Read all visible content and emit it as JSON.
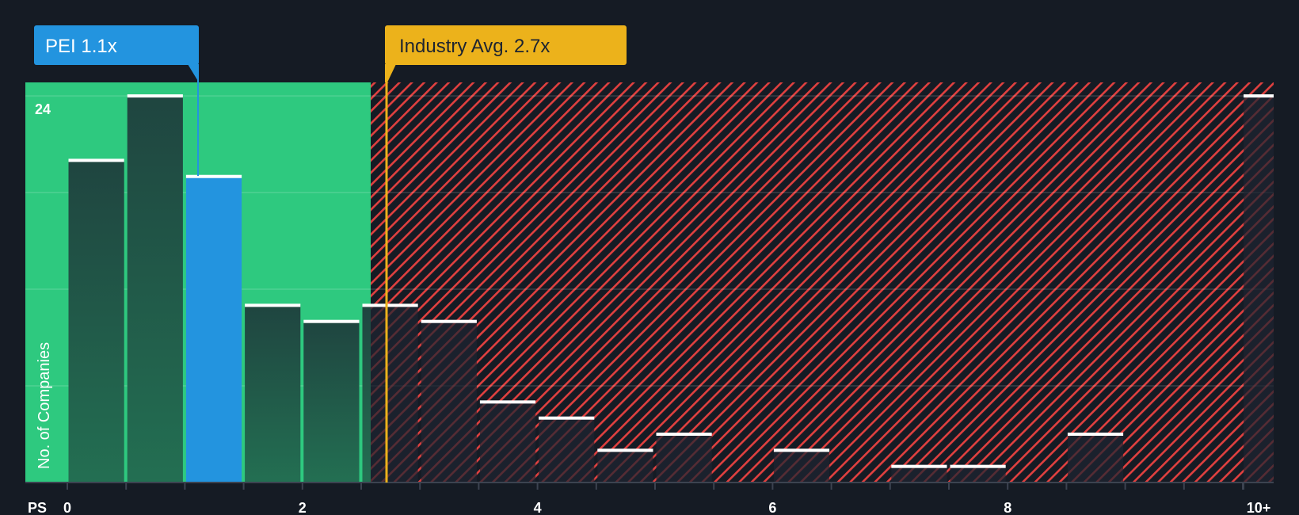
{
  "chart_data": {
    "type": "bar",
    "title": "",
    "xlabel": "PS",
    "ylabel": "No. of Companies",
    "x_tick_labels": [
      "0",
      "2",
      "4",
      "6",
      "8",
      "10+"
    ],
    "y_tick_labels": [
      "24"
    ],
    "ylim": [
      0,
      24
    ],
    "grid": true,
    "bin_width": 0.5,
    "bins": [
      {
        "range": "0-0.5",
        "value": 20
      },
      {
        "range": "0.5-1.0",
        "value": 24
      },
      {
        "range": "1.0-1.5",
        "value": 19,
        "highlight": true
      },
      {
        "range": "1.5-2.0",
        "value": 11
      },
      {
        "range": "2.0-2.5",
        "value": 10
      },
      {
        "range": "2.5-3.0",
        "value": 11
      },
      {
        "range": "3.0-3.5",
        "value": 10
      },
      {
        "range": "3.5-4.0",
        "value": 5
      },
      {
        "range": "4.0-4.5",
        "value": 4
      },
      {
        "range": "4.5-5.0",
        "value": 2
      },
      {
        "range": "5.0-5.5",
        "value": 3
      },
      {
        "range": "5.5-6.0",
        "value": 0
      },
      {
        "range": "6.0-6.5",
        "value": 2
      },
      {
        "range": "6.5-7.0",
        "value": 0
      },
      {
        "range": "7.0-7.5",
        "value": 1
      },
      {
        "range": "7.5-8.0",
        "value": 1
      },
      {
        "range": "8.0-8.5",
        "value": 0
      },
      {
        "range": "8.5-9.0",
        "value": 3
      },
      {
        "range": "9.0-9.5",
        "value": 0
      },
      {
        "range": "9.5-10.0",
        "value": 0
      },
      {
        "range": "10+",
        "value": 24
      }
    ],
    "annotations": [
      {
        "label": "PEI 1.1x",
        "x": 1.1,
        "color": "#2394df"
      },
      {
        "label": "Industry Avg. 2.7x",
        "x": 2.7,
        "color": "#ecb21b"
      }
    ],
    "regions": [
      {
        "name": "fair",
        "from": 0,
        "to": 2.58,
        "color": "#2ec97f"
      },
      {
        "name": "overvalued",
        "from": 2.58,
        "to": "10+",
        "color": "#e0403f",
        "pattern": "hatched"
      }
    ]
  },
  "labels": {
    "pei_callout": "PEI 1.1x",
    "industry_callout": "Industry Avg. 2.7x",
    "y_axis_title": "No. of Companies",
    "x_axis_title": "PS",
    "y_max_tick": "24",
    "x_ticks": [
      "0",
      "2",
      "4",
      "6",
      "8",
      "10+"
    ]
  },
  "colors": {
    "background": "#151b24",
    "fair_region": "#2ec97f",
    "hatch": "#e0403f",
    "bar_fill": "#1f4a3e",
    "highlight_bar": "#2394df",
    "industry": "#ecb21b",
    "bar_cap": "#ffffff"
  }
}
